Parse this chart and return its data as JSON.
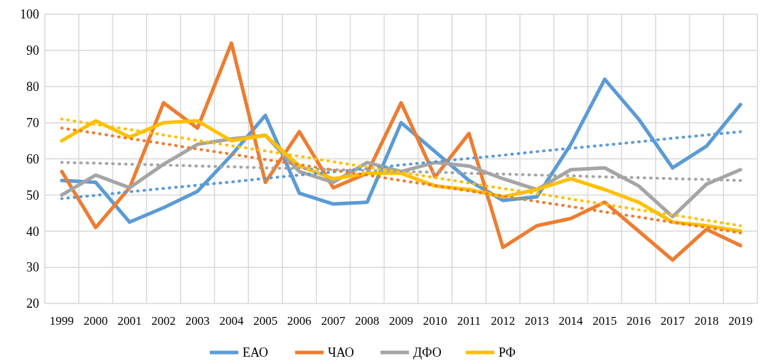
{
  "chart_data": {
    "type": "line",
    "categories": [
      "1999",
      "2000",
      "2001",
      "2002",
      "2003",
      "2004",
      "2005",
      "2006",
      "2007",
      "2008",
      "2009",
      "2010",
      "2011",
      "2012",
      "2013",
      "2014",
      "2015",
      "2016",
      "2017",
      "2018",
      "2019"
    ],
    "ylim": [
      20,
      100
    ],
    "yticks": [
      20,
      30,
      40,
      50,
      60,
      70,
      80,
      90,
      100
    ],
    "grid": true,
    "legend": "bottom",
    "line_style": "solid",
    "marker": "none",
    "series": [
      {
        "name": "ЕАО",
        "color": "#5b9bd5",
        "values": [
          54,
          53.5,
          42.5,
          46.5,
          51,
          61,
          72,
          50.5,
          47.5,
          48,
          70,
          62,
          54,
          48.5,
          49.5,
          64,
          82,
          71,
          57.5,
          63.5,
          75
        ]
      },
      {
        "name": "ЧАО",
        "color": "#ed7d31",
        "values": [
          56.5,
          41,
          52,
          75.5,
          68.5,
          92,
          53.5,
          67.5,
          52,
          56,
          75.5,
          55,
          67,
          35.5,
          41.5,
          43.5,
          48,
          40,
          32,
          40.5,
          36
        ]
      },
      {
        "name": "ДФО",
        "color": "#a5a5a5",
        "values": [
          50,
          55.5,
          52,
          58.5,
          64,
          65.5,
          66.5,
          56.5,
          53.5,
          59,
          56.5,
          59,
          58,
          54.5,
          51.5,
          57,
          57.5,
          52.5,
          44,
          53,
          57
        ]
      },
      {
        "name": "РФ",
        "color": "#ffc000",
        "values": [
          65,
          70.5,
          66,
          70,
          70.5,
          65,
          66.5,
          58,
          54.5,
          56,
          56,
          52.5,
          51.5,
          49.5,
          51.5,
          54.5,
          51.5,
          48,
          42.5,
          41.5,
          40
        ]
      },
      {
        "type": "line",
        "line_style": "dotted",
        "color": "#5b9bd5",
        "values": [
          49,
          49.9,
          50.9,
          51.8,
          52.7,
          53.6,
          54.6,
          55.5,
          56.4,
          57.3,
          58.3,
          59.2,
          60.1,
          61,
          62,
          62.9,
          63.8,
          64.7,
          65.7,
          66.6,
          67.5
        ]
      },
      {
        "type": "line",
        "line_style": "dotted",
        "color": "#ed7d31",
        "values": [
          68.5,
          67.1,
          65.6,
          64.2,
          62.7,
          61.3,
          59.8,
          58.4,
          56.9,
          55.5,
          54,
          52.6,
          51.1,
          49.7,
          48.2,
          46.8,
          45.3,
          43.9,
          42.4,
          41,
          39.5
        ]
      },
      {
        "type": "line",
        "line_style": "dotted",
        "color": "#a5a5a5",
        "values": [
          59,
          58.8,
          58.5,
          58.3,
          58,
          57.8,
          57.5,
          57.3,
          57,
          56.8,
          56.5,
          56.3,
          56,
          55.8,
          55.5,
          55.3,
          55,
          54.8,
          54.5,
          54.3,
          54
        ]
      },
      {
        "type": "line",
        "line_style": "dotted",
        "color": "#ffc000",
        "values": [
          71,
          69.5,
          68.1,
          66.6,
          65.1,
          63.6,
          62.2,
          60.7,
          59.2,
          57.7,
          56.3,
          54.8,
          53.3,
          51.8,
          50.4,
          48.9,
          47.4,
          45.9,
          44.5,
          43,
          41.5
        ]
      }
    ]
  }
}
